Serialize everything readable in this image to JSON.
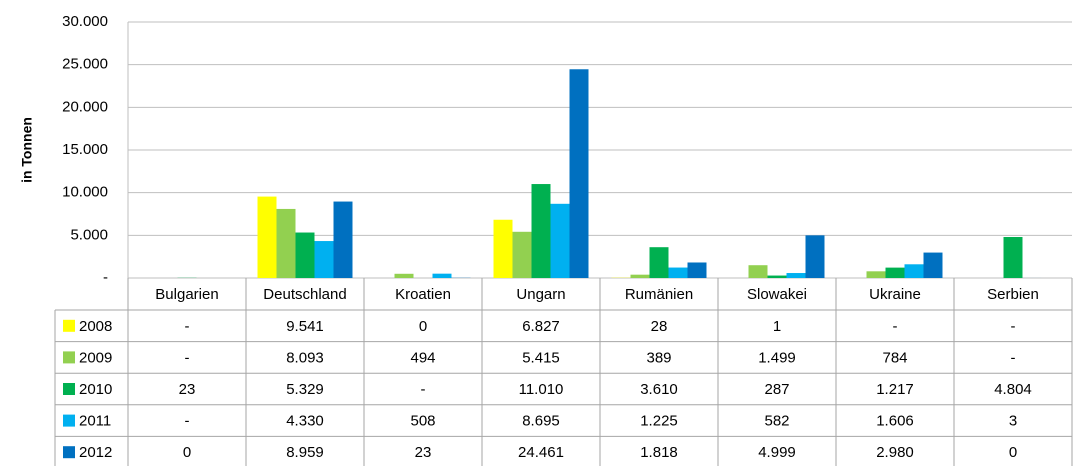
{
  "chart_data": {
    "type": "bar",
    "y_label": "in Tonnen",
    "categories": [
      "Bulgarien",
      "Deutschland",
      "Kroatien",
      "Ungarn",
      "Rumänien",
      "Slowakei",
      "Ukraine",
      "Serbien"
    ],
    "ylim": [
      0,
      30000
    ],
    "yticks": [
      {
        "value": 0,
        "label": "-"
      },
      {
        "value": 5000,
        "label": "5.000"
      },
      {
        "value": 10000,
        "label": "10.000"
      },
      {
        "value": 15000,
        "label": "15.000"
      },
      {
        "value": 20000,
        "label": "20.000"
      },
      {
        "value": 25000,
        "label": "25.000"
      },
      {
        "value": 30000,
        "label": "30.000"
      }
    ],
    "grid": true,
    "series": [
      {
        "name": "2008",
        "color": "#ffff00",
        "values": [
          null,
          9541,
          0,
          6827,
          28,
          1,
          null,
          null
        ],
        "value_labels": [
          "-",
          "9.541",
          "0",
          "6.827",
          "28",
          "1",
          "-",
          "-"
        ]
      },
      {
        "name": "2009",
        "color": "#92d050",
        "values": [
          null,
          8093,
          494,
          5415,
          389,
          1499,
          784,
          null
        ],
        "value_labels": [
          "-",
          "8.093",
          "494",
          "5.415",
          "389",
          "1.499",
          "784",
          "-"
        ]
      },
      {
        "name": "2010",
        "color": "#00b050",
        "values": [
          23,
          5329,
          null,
          11010,
          3610,
          287,
          1217,
          4804
        ],
        "value_labels": [
          "23",
          "5.329",
          "-",
          "11.010",
          "3.610",
          "287",
          "1.217",
          "4.804"
        ]
      },
      {
        "name": "2011",
        "color": "#00b0f0",
        "values": [
          null,
          4330,
          508,
          8695,
          1225,
          582,
          1606,
          3
        ],
        "value_labels": [
          "-",
          "4.330",
          "508",
          "8.695",
          "1.225",
          "582",
          "1.606",
          "3"
        ]
      },
      {
        "name": "2012",
        "color": "#0070c0",
        "values": [
          0,
          8959,
          23,
          24461,
          1818,
          4999,
          2980,
          0
        ],
        "value_labels": [
          "0",
          "8.959",
          "23",
          "24.461",
          "1.818",
          "4.999",
          "2.980",
          "0"
        ]
      }
    ]
  }
}
